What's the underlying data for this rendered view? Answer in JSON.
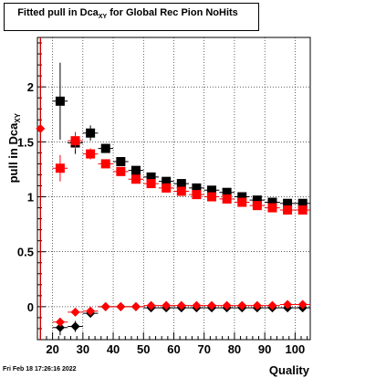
{
  "timestamp": "Fri Feb 18 17:26:16 2022",
  "chart_data": {
    "type": "scatter",
    "title_main": "Fitted pull in Dca",
    "title_sub": "XY",
    "title_tail": "for Global Rec Pion NoHits",
    "xlabel": "Quality",
    "ylabel_main": "pull in Dca",
    "ylabel_sub": "XY",
    "xlim": [
      15,
      105
    ],
    "ylim": [
      -0.3,
      2.45
    ],
    "x_ticks": [
      20,
      30,
      40,
      50,
      60,
      70,
      80,
      90,
      100
    ],
    "y_ticks": [
      0,
      0.5,
      1,
      1.5,
      2
    ],
    "y_tick_labels": [
      "0",
      "0.5",
      "1",
      "1.5",
      "2"
    ],
    "grid": true,
    "reference_line_x": 16,
    "reference_line_color": "#cc0000",
    "series": [
      {
        "marker": "square",
        "color": "#000000",
        "x": [
          22.5,
          27.5,
          32.5,
          37.5,
          42.5,
          47.5,
          52.5,
          57.5,
          62.5,
          67.5,
          72.5,
          77.5,
          82.5,
          87.5,
          92.5,
          97.5,
          102.5
        ],
        "y": [
          1.87,
          1.49,
          1.58,
          1.44,
          1.32,
          1.24,
          1.18,
          1.14,
          1.12,
          1.08,
          1.06,
          1.04,
          1.0,
          0.97,
          0.95,
          0.94,
          0.94
        ],
        "err": [
          0.35,
          0.1,
          0.07,
          0.04,
          0.03,
          0.03,
          0.02,
          0.02,
          0.02,
          0.02,
          0.02,
          0.02,
          0.02,
          0.02,
          0.02,
          0.02,
          0.02
        ]
      },
      {
        "marker": "square",
        "color": "#ff0000",
        "x": [
          22.5,
          27.5,
          32.5,
          37.5,
          42.5,
          47.5,
          52.5,
          57.5,
          62.5,
          67.5,
          72.5,
          77.5,
          82.5,
          87.5,
          92.5,
          97.5,
          102.5
        ],
        "y": [
          1.26,
          1.51,
          1.39,
          1.3,
          1.23,
          1.16,
          1.12,
          1.08,
          1.05,
          1.02,
          1.0,
          0.98,
          0.95,
          0.92,
          0.9,
          0.88,
          0.88
        ],
        "err": [
          0.12,
          0.08,
          0.05,
          0.03,
          0.03,
          0.02,
          0.02,
          0.02,
          0.02,
          0.02,
          0.02,
          0.02,
          0.02,
          0.02,
          0.02,
          0.02,
          0.02
        ]
      },
      {
        "marker": "diamond",
        "color": "#000000",
        "x": [
          22.5,
          27.5,
          32.5,
          37.5,
          42.5,
          47.5,
          52.5,
          57.5,
          62.5,
          67.5,
          72.5,
          77.5,
          82.5,
          87.5,
          92.5,
          97.5,
          102.5
        ],
        "y": [
          -0.19,
          -0.18,
          -0.06,
          0.0,
          0.0,
          0.0,
          -0.01,
          -0.01,
          -0.01,
          -0.01,
          -0.01,
          -0.01,
          -0.01,
          -0.01,
          -0.01,
          -0.01,
          -0.01
        ],
        "err": [
          0.07,
          0.05,
          0.03,
          0.02,
          0.02,
          0.02,
          0.01,
          0.01,
          0.01,
          0.01,
          0.01,
          0.01,
          0.01,
          0.01,
          0.01,
          0.01,
          0.01
        ]
      },
      {
        "marker": "diamond",
        "color": "#ff0000",
        "x": [
          16,
          22.5,
          27.5,
          32.5,
          37.5,
          42.5,
          47.5,
          52.5,
          57.5,
          62.5,
          67.5,
          72.5,
          77.5,
          82.5,
          87.5,
          92.5,
          97.5,
          102.5
        ],
        "y": [
          1.62,
          -0.14,
          -0.05,
          -0.04,
          0.0,
          0.0,
          0.0,
          0.01,
          0.01,
          0.01,
          0.01,
          0.01,
          0.01,
          0.01,
          0.01,
          0.01,
          0.02,
          0.02
        ],
        "err": [
          0,
          0.04,
          0.03,
          0.02,
          0.02,
          0.01,
          0.01,
          0.01,
          0.01,
          0.01,
          0.01,
          0.01,
          0.01,
          0.01,
          0.01,
          0.01,
          0.01,
          0.01
        ]
      }
    ]
  }
}
